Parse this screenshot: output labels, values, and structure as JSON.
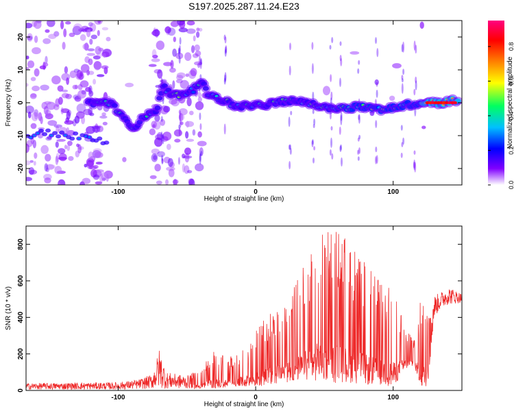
{
  "title": "S197.2025.287.11.24.E23",
  "chart_data": [
    {
      "type": "heatmap",
      "xlabel": "Height of straight line (km)",
      "ylabel": "Frequency (Hz)",
      "xlim": [
        -167,
        150
      ],
      "ylim": [
        -25,
        25
      ],
      "xticks": [
        -100,
        0,
        100
      ],
      "yticks": [
        -20,
        -10,
        0,
        10,
        20
      ],
      "colorbar": {
        "label": "Normalized spectral amplitude",
        "range": [
          0.0,
          0.95
        ],
        "ticks": [
          "0.0",
          "0.2",
          "0.4",
          "0.6",
          "0.8"
        ],
        "colormap": [
          "#ffffff",
          "#8000ff",
          "#0000ff",
          "#00c0ff",
          "#00ff60",
          "#ffff00",
          "#ff8000",
          "#ff0000",
          "#ff0080"
        ]
      },
      "ridge": {
        "x": [
          -120,
          -105,
          -90,
          -80,
          -72,
          -67,
          -60,
          -52,
          -45,
          -40,
          -35,
          -25,
          -15,
          0,
          15,
          30,
          45,
          60,
          75,
          90,
          105,
          120,
          135,
          148
        ],
        "y": [
          0,
          0,
          -8,
          -4,
          -2,
          5,
          2,
          3,
          4,
          7,
          3,
          1,
          -1,
          -1,
          0,
          1,
          -1,
          -2,
          -1,
          -2,
          -1,
          0,
          0,
          1
        ]
      },
      "ridge_left": {
        "x": [
          -165,
          -150,
          -135,
          -120,
          -110
        ],
        "y": [
          -10,
          -9,
          -10,
          -11,
          -12
        ]
      },
      "peak_region": {
        "x": [
          125,
          145
        ],
        "y": 0,
        "value": 0.95
      }
    },
    {
      "type": "line",
      "xlabel": "Height of straight line (km)",
      "ylabel": "SNR (10 * v/v)",
      "xlim": [
        -167,
        150
      ],
      "ylim": [
        0,
        900
      ],
      "xticks": [
        -100,
        0,
        100
      ],
      "yticks": [
        0,
        200,
        400,
        600,
        800
      ],
      "series": [
        {
          "color": "#ee2a2a",
          "envelope": {
            "x": [
              -167,
              -100,
              -85,
              -75,
              -70,
              -65,
              -50,
              -40,
              -30,
              -20,
              -10,
              0,
              10,
              20,
              30,
              40,
              45,
              50,
              55,
              60,
              70,
              80,
              90,
              100,
              110,
              115,
              120,
              125,
              130,
              135,
              140,
              150
            ],
            "upper": [
              40,
              45,
              60,
              90,
              230,
              100,
              80,
              120,
              220,
              180,
              240,
              330,
              420,
              500,
              600,
              800,
              900,
              900,
              900,
              880,
              800,
              700,
              600,
              560,
              340,
              290,
              500,
              480,
              520,
              540,
              570,
              530
            ],
            "lower": [
              5,
              5,
              8,
              10,
              10,
              10,
              10,
              10,
              12,
              15,
              20,
              20,
              30,
              40,
              50,
              50,
              50,
              50,
              40,
              40,
              40,
              30,
              30,
              20,
              120,
              130,
              20,
              20,
              400,
              450,
              470,
              480
            ]
          }
        }
      ]
    }
  ]
}
